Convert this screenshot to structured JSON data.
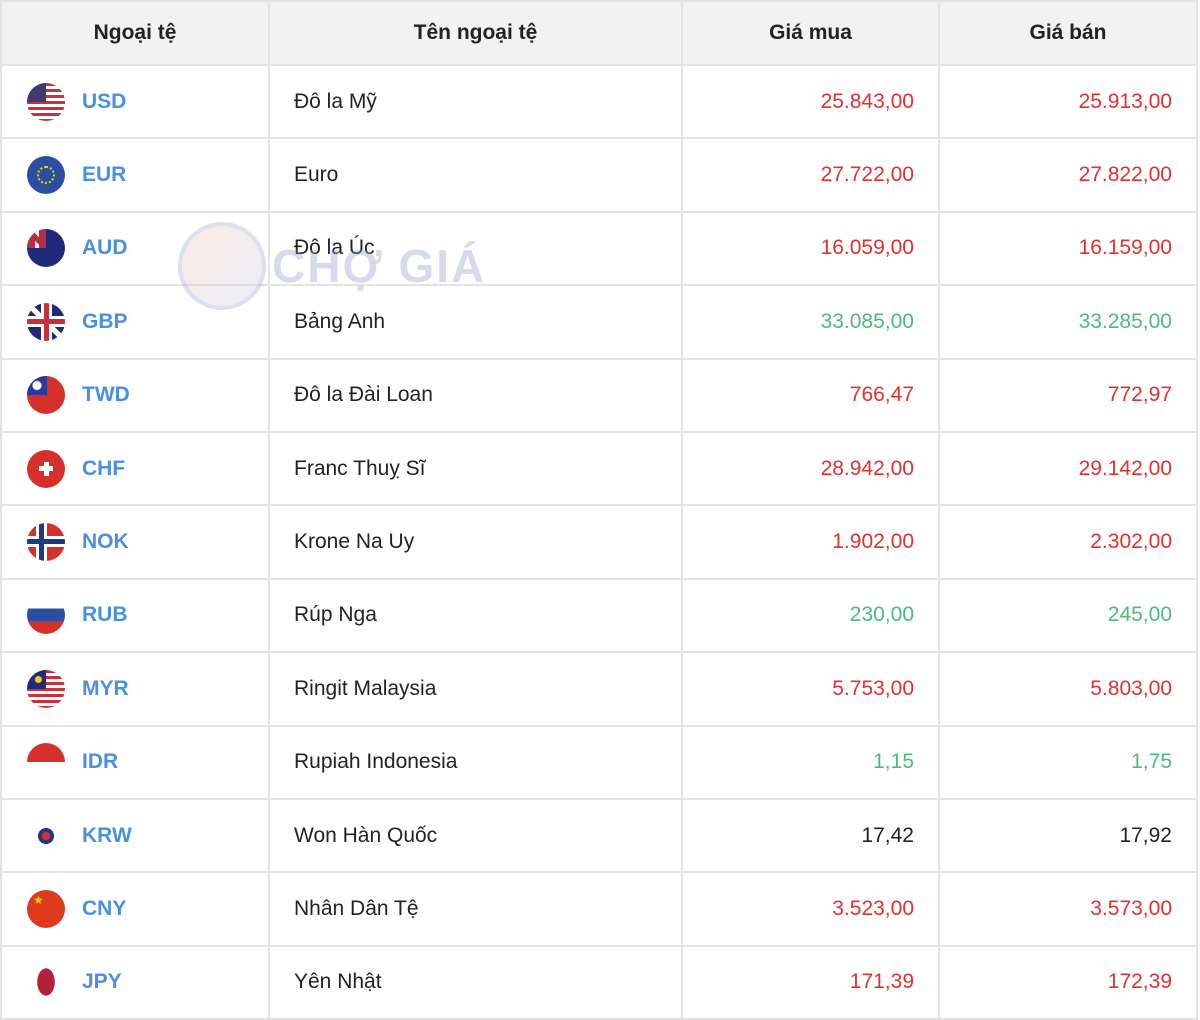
{
  "table": {
    "headers": [
      "Ngoại tệ",
      "Tên ngoại tệ",
      "Giá mua",
      "Giá bán"
    ],
    "rows": [
      {
        "code": "USD",
        "name": "Đô la Mỹ",
        "buy": "25.843,00",
        "sell": "25.913,00",
        "color": "red"
      },
      {
        "code": "EUR",
        "name": "Euro",
        "buy": "27.722,00",
        "sell": "27.822,00",
        "color": "red"
      },
      {
        "code": "AUD",
        "name": "Đô la Úc",
        "buy": "16.059,00",
        "sell": "16.159,00",
        "color": "red"
      },
      {
        "code": "GBP",
        "name": "Bảng Anh",
        "buy": "33.085,00",
        "sell": "33.285,00",
        "color": "green"
      },
      {
        "code": "TWD",
        "name": "Đô la Đài Loan",
        "buy": "766,47",
        "sell": "772,97",
        "color": "red"
      },
      {
        "code": "CHF",
        "name": "Franc Thuỵ Sĩ",
        "buy": "28.942,00",
        "sell": "29.142,00",
        "color": "red"
      },
      {
        "code": "NOK",
        "name": "Krone Na Uy",
        "buy": "1.902,00",
        "sell": "2.302,00",
        "color": "red"
      },
      {
        "code": "RUB",
        "name": "Rúp Nga",
        "buy": "230,00",
        "sell": "245,00",
        "color": "green"
      },
      {
        "code": "MYR",
        "name": "Ringit Malaysia",
        "buy": "5.753,00",
        "sell": "5.803,00",
        "color": "red"
      },
      {
        "code": "IDR",
        "name": "Rupiah Indonesia",
        "buy": "1,15",
        "sell": "1,75",
        "color": "green"
      },
      {
        "code": "KRW",
        "name": "Won Hàn Quốc",
        "buy": "17,42",
        "sell": "17,92",
        "color": "black"
      },
      {
        "code": "CNY",
        "name": "Nhân Dân Tệ",
        "buy": "3.523,00",
        "sell": "3.573,00",
        "color": "red"
      },
      {
        "code": "JPY",
        "name": "Yên Nhật",
        "buy": "171,39",
        "sell": "172,39",
        "color": "red"
      }
    ]
  },
  "colors": {
    "red": "#e0322d",
    "green": "#4cbb7a",
    "code": "#4a90e2"
  },
  "watermark": {
    "text": "CHỢ GIÁ"
  }
}
